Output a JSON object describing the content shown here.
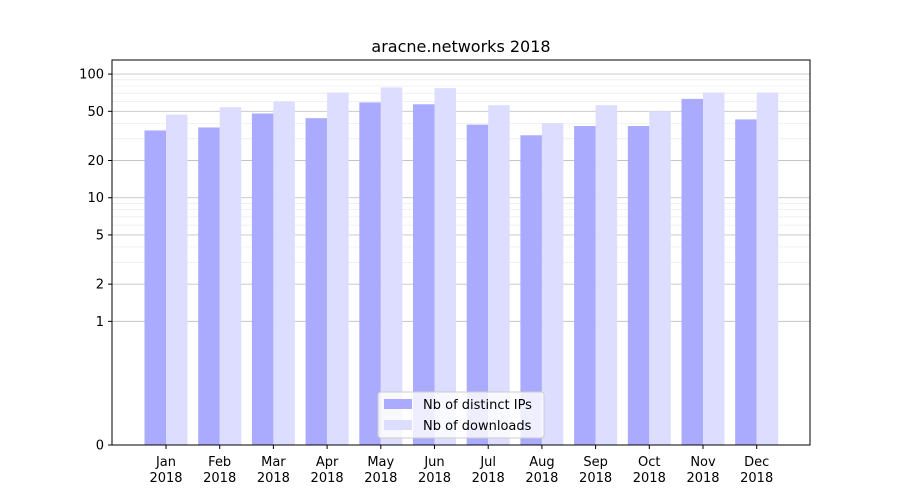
{
  "chart_data": {
    "type": "bar",
    "title": "aracne.networks 2018",
    "xlabel": "",
    "ylabel": "",
    "yscale": "symlog",
    "ylim": [
      0,
      130
    ],
    "yticks": [
      0,
      1,
      2,
      5,
      10,
      20,
      50,
      100
    ],
    "grid": true,
    "legend": "bottom-center",
    "categories": [
      "Jan\n2018",
      "Feb\n2018",
      "Mar\n2018",
      "Apr\n2018",
      "May\n2018",
      "Jun\n2018",
      "Jul\n2018",
      "Aug\n2018",
      "Sep\n2018",
      "Oct\n2018",
      "Nov\n2018",
      "Dec\n2018"
    ],
    "series": [
      {
        "name": "Nb of distinct IPs",
        "color": "#aaaaff",
        "values": [
          35,
          37,
          48,
          44,
          59,
          57,
          39,
          32,
          38,
          38,
          63,
          43
        ]
      },
      {
        "name": "Nb of downloads",
        "color": "#ddddff",
        "values": [
          47,
          54,
          60,
          71,
          78,
          77,
          56,
          40,
          56,
          50,
          71,
          71
        ]
      }
    ]
  }
}
